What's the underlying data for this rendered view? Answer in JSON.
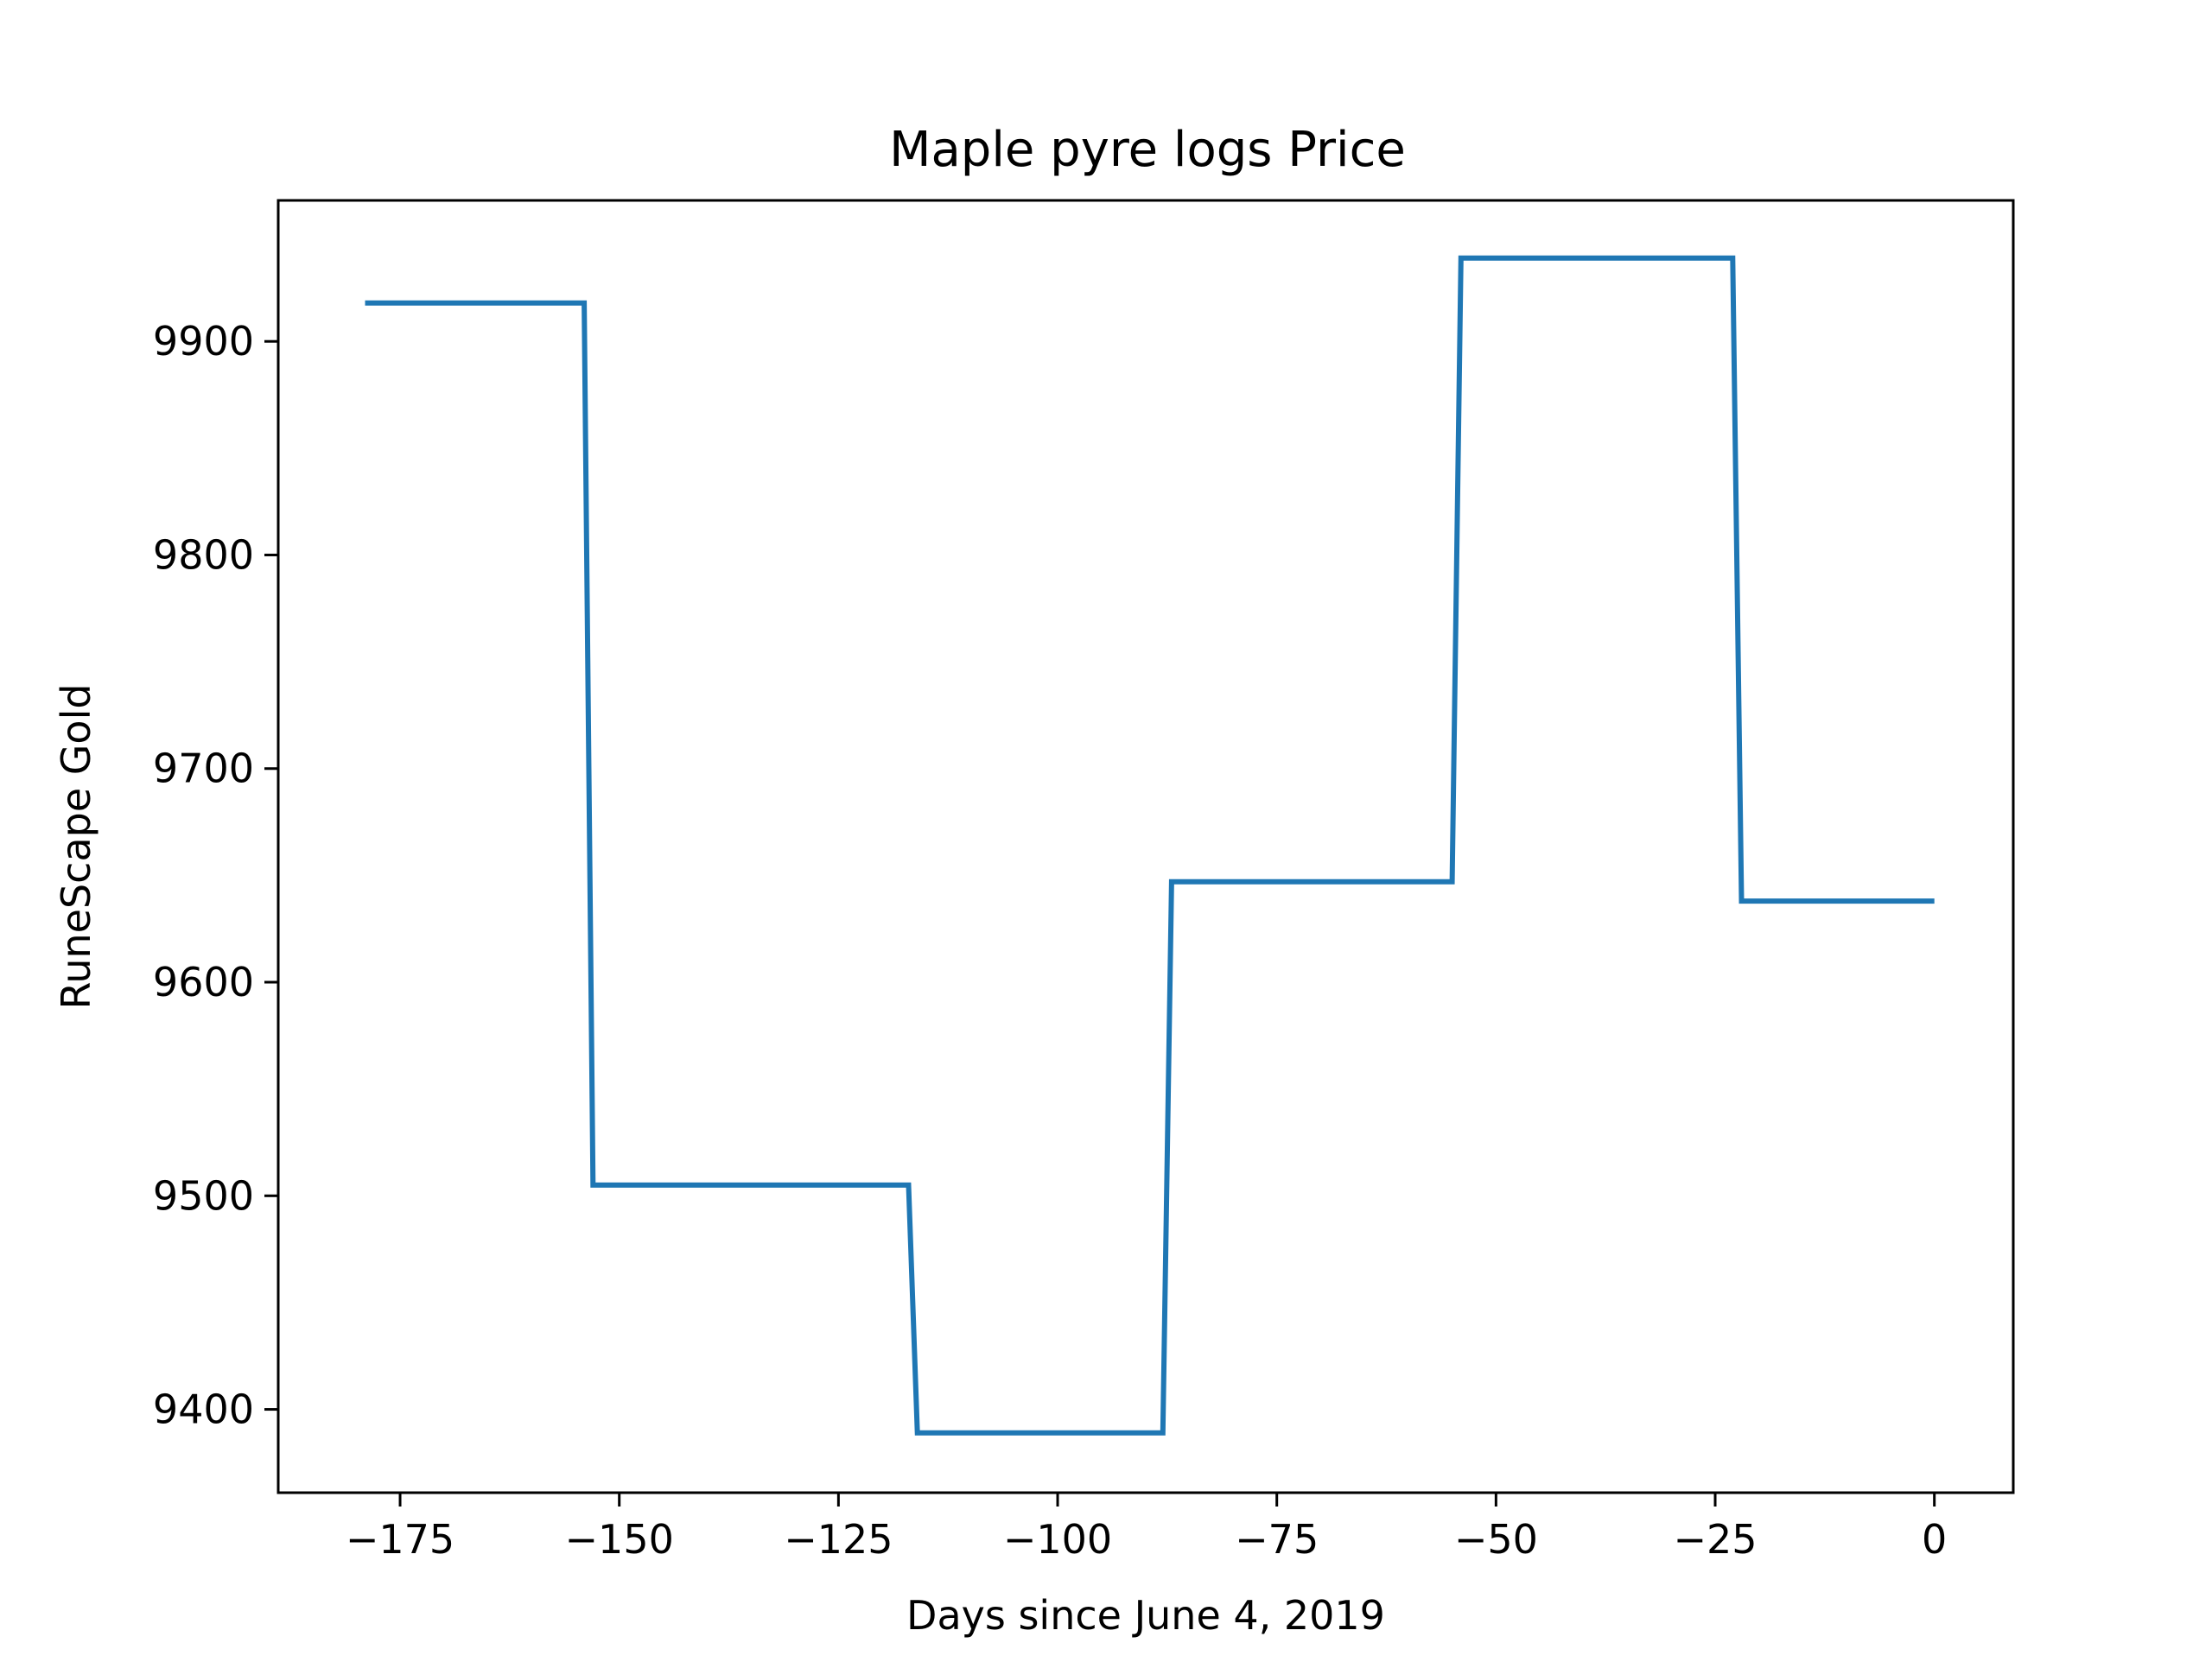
{
  "chart_data": {
    "type": "line",
    "title": "Maple pyre logs Price",
    "xlabel": "Days since June 4, 2019",
    "ylabel": "RuneScape Gold",
    "xlim": [
      -188.9,
      9
    ],
    "ylim": [
      9361,
      9966
    ],
    "x_ticks": [
      -175,
      -150,
      -125,
      -100,
      -75,
      -50,
      -25,
      0
    ],
    "x_tick_labels": [
      "−175",
      "−150",
      "−125",
      "−100",
      "−75",
      "−50",
      "−25",
      "0"
    ],
    "y_ticks": [
      9400,
      9500,
      9600,
      9700,
      9800,
      9900
    ],
    "y_tick_labels": [
      "9400",
      "9500",
      "9600",
      "9700",
      "9800",
      "9900"
    ],
    "grid": false,
    "legend": "none",
    "line_color": "#1f77b4",
    "series": [
      {
        "x": [
          -179,
          -154,
          -153,
          -117,
          -116,
          -88,
          -87,
          -55,
          -54,
          -23,
          -22,
          0
        ],
        "y": [
          9918,
          9918,
          9505,
          9505,
          9389,
          9389,
          9647,
          9647,
          9939,
          9939,
          9638,
          9638
        ]
      }
    ]
  }
}
